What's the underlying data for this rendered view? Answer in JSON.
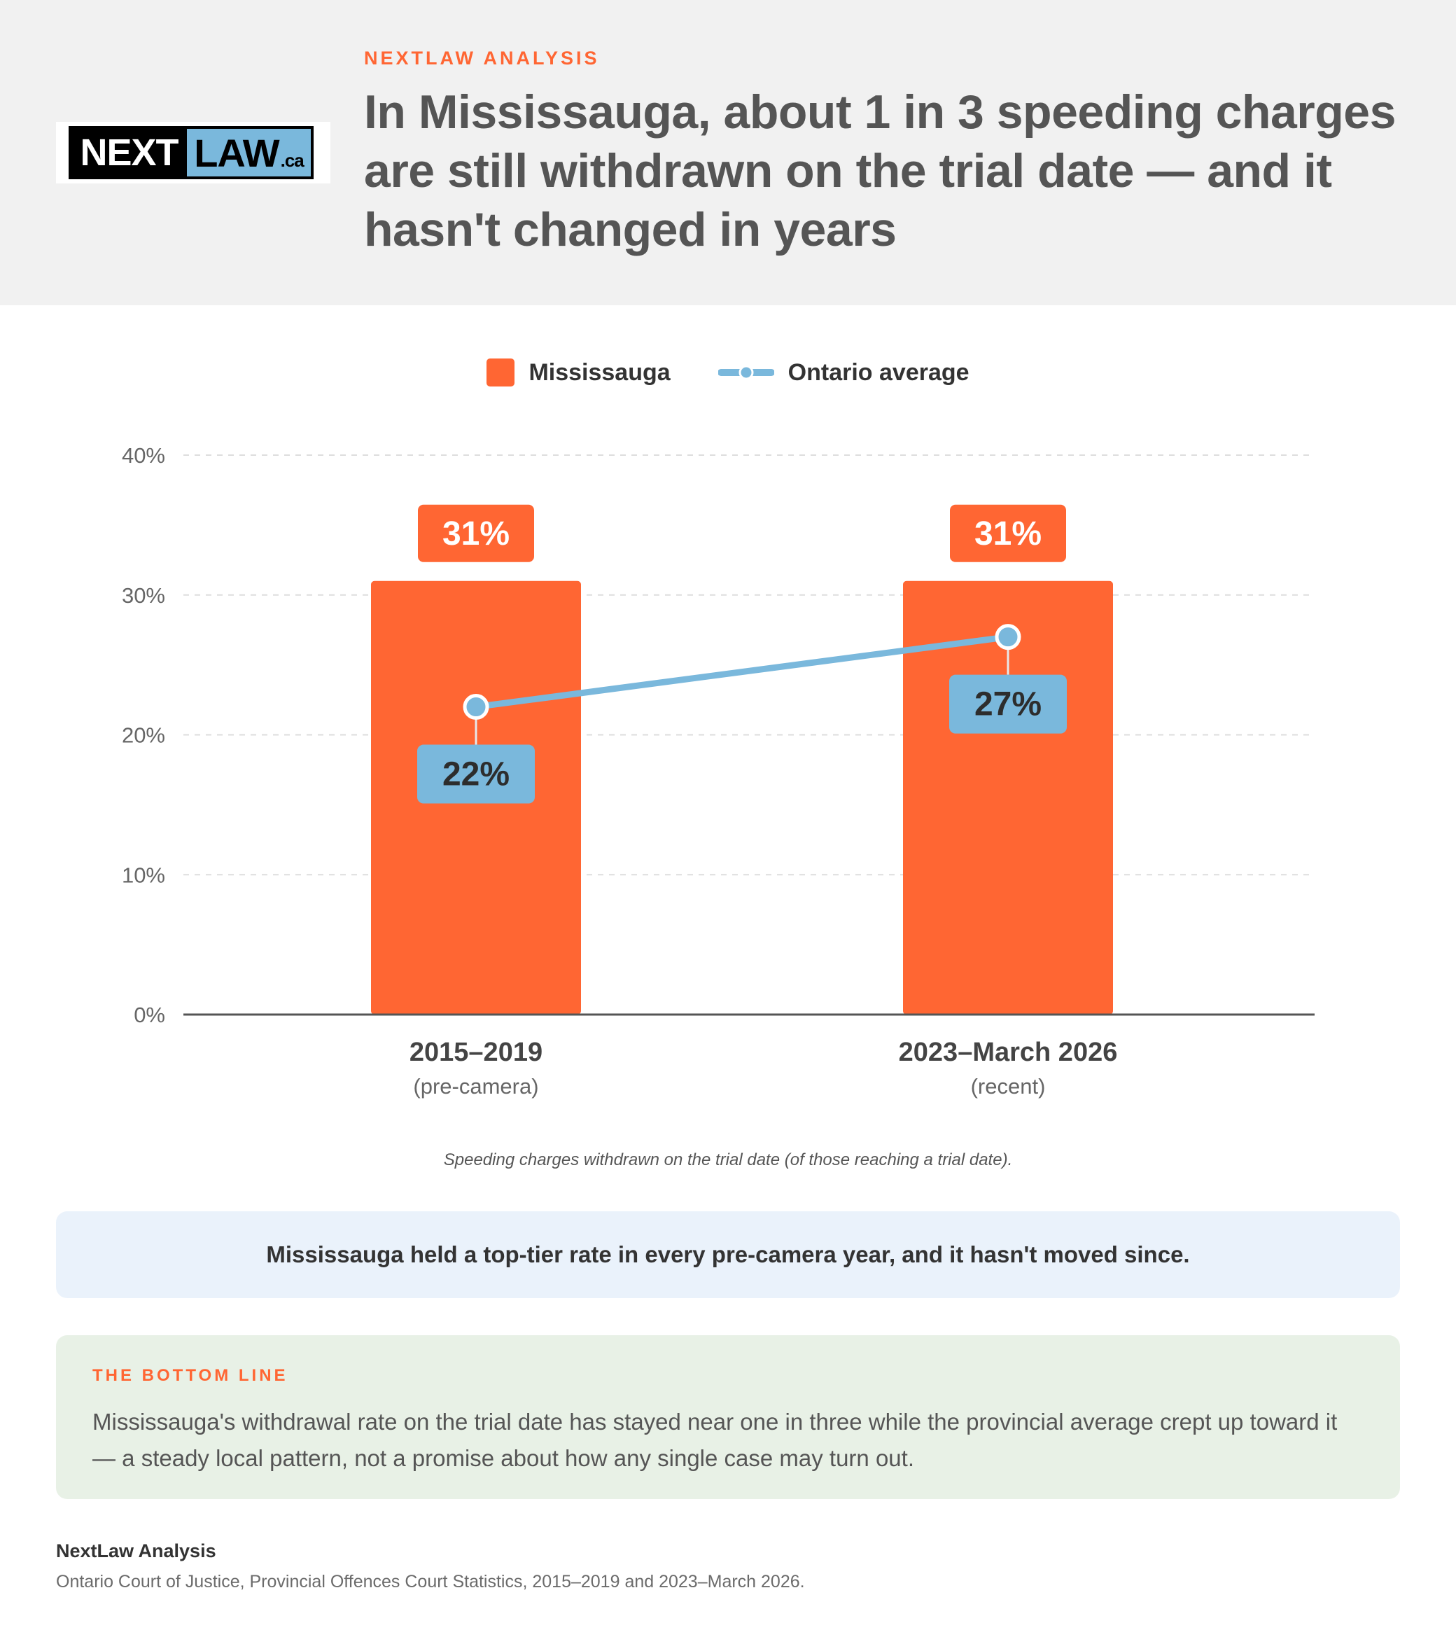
{
  "header": {
    "kicker": "NEXTLAW ANALYSIS",
    "title": "In Mississauga, about 1 in 3 speeding charges are still withdrawn on the trial date — and it hasn't changed in years"
  },
  "logo": {
    "next": "NEXT",
    "law": "LAW",
    "ca": ".ca"
  },
  "legend": {
    "bar_label": "Mississauga",
    "line_label": "Ontario average"
  },
  "chart_data": {
    "type": "bar",
    "categories": [
      "2015–2019",
      "2023–March 2026"
    ],
    "category_sublabels": [
      "(pre-camera)",
      "(recent)"
    ],
    "series": [
      {
        "name": "Mississauga",
        "kind": "bar",
        "values": [
          31,
          31
        ],
        "labels": [
          "31%",
          "31%"
        ],
        "color": "#ff6633"
      },
      {
        "name": "Ontario average",
        "kind": "line",
        "values": [
          22,
          27
        ],
        "labels": [
          "22%",
          "27%"
        ],
        "color": "#7ab8dc"
      }
    ],
    "yticks": [
      0,
      10,
      20,
      30,
      40
    ],
    "ytick_labels": [
      "0%",
      "10%",
      "20%",
      "30%",
      "40%"
    ],
    "ylim": [
      0,
      40
    ],
    "grid": true,
    "legend_position": "top-center",
    "title": "",
    "xlabel": "",
    "ylabel": ""
  },
  "chart_note": "Speeding charges withdrawn on the trial date (of those reaching a trial date).",
  "callout": "Mississauga held a top-tier rate in every pre-camera year, and it hasn't moved since.",
  "bottom_line": {
    "label": "THE BOTTOM LINE",
    "text": "Mississauga's withdrawal rate on the trial date has stayed near one in three while the provincial average crept up toward it — a steady local pattern, not a promise about how any single case may turn out."
  },
  "footer": {
    "title": "NextLaw Analysis",
    "source": "Ontario Court of Justice, Provincial Offences Court Statistics, 2015–2019 and 2023–March 2026."
  }
}
